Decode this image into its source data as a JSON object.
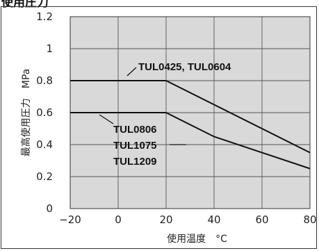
{
  "page": {
    "heading": "使用圧力"
  },
  "chart_data": {
    "type": "line",
    "xlabel": "使用温度　°C",
    "ylabel": "最高使用圧力　MPa",
    "xlim": [
      -20,
      80
    ],
    "ylim": [
      0,
      1.2
    ],
    "x_ticks": [
      "−20",
      "0",
      "20",
      "40",
      "60",
      "80"
    ],
    "x_tick_values": [
      -20,
      0,
      20,
      40,
      60,
      80
    ],
    "y_ticks": [
      "0",
      "0.2",
      "0.4",
      "0.6",
      "0.8",
      "1",
      "1.2"
    ],
    "y_tick_values": [
      0,
      0.2,
      0.4,
      0.6,
      0.8,
      1.0,
      1.2
    ],
    "grid": true,
    "plot_background": "#d9d9d9",
    "line_color": "#111111",
    "series": [
      {
        "name": "TUL0425, TUL0604",
        "x": [
          -20,
          20,
          80
        ],
        "y": [
          0.8,
          0.8,
          0.35
        ]
      },
      {
        "name": "TUL0806 / TUL1075 / TUL1209",
        "x": [
          -20,
          20,
          40,
          80
        ],
        "y": [
          0.6,
          0.6,
          0.45,
          0.25
        ]
      }
    ],
    "annotations": [
      {
        "lines": [
          "TUL0425, TUL0604"
        ],
        "series": 0
      },
      {
        "lines": [
          "TUL0806",
          "TUL1075",
          "TUL1209"
        ],
        "series": 1
      }
    ]
  }
}
